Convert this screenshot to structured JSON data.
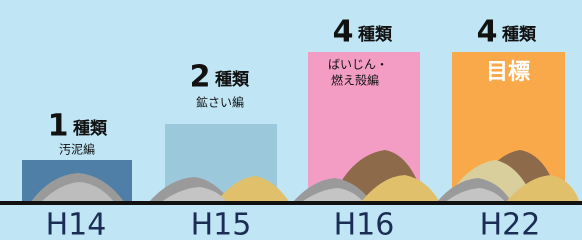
{
  "columns": [
    {
      "year": "H14",
      "count": "1",
      "unit": "種類",
      "sublabel": [
        "汚泥編"
      ]
    },
    {
      "year": "H15",
      "count": "2",
      "unit": "種類",
      "sublabel": [
        "鉱さい編"
      ]
    },
    {
      "year": "H16",
      "count": "4",
      "unit": "種類",
      "sublabel": [
        "ばいじん・",
        "燃え殻編"
      ]
    },
    {
      "year": "H22",
      "count": "4",
      "unit": "種類",
      "sublabel": [
        "目標"
      ]
    }
  ]
}
